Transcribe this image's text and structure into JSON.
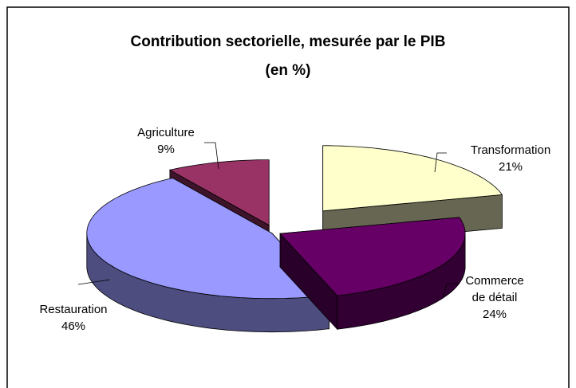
{
  "chart_data": {
    "type": "pie3d",
    "title": "Contribution sectorielle, mesurée  par  le PIB",
    "subtitle": "(en %)",
    "categories": [
      "Transformation",
      "Commerce de détail",
      "Restauration",
      "Agriculture"
    ],
    "values": [
      21,
      24,
      46,
      9
    ],
    "value_labels": [
      "21%",
      "24%",
      "46%",
      "9%"
    ],
    "colors": [
      "#FFFFCC",
      "#660066",
      "#9999FF",
      "#993366"
    ]
  }
}
